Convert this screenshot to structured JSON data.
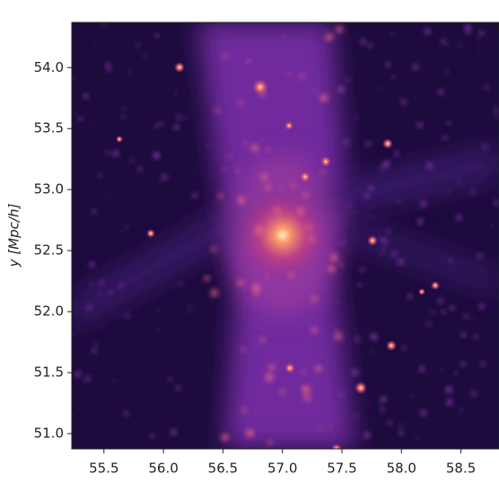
{
  "chart_data": {
    "type": "image",
    "ylabel": "y [Mpc/h]",
    "xlim": [
      55.23,
      58.82
    ],
    "ylim": [
      50.875,
      54.37
    ],
    "xticks": [
      55.5,
      {
        "value": 56,
        "label": "56.0"
      },
      56.5,
      {
        "value": 57,
        "label": "57.0"
      },
      57.5,
      {
        "value": 58,
        "label": "58.0"
      },
      58.5
    ],
    "yticks": [
      {
        "value": 51,
        "label": "51.0"
      },
      51.5,
      {
        "value": 52,
        "label": "52.0"
      },
      52.5,
      {
        "value": 53,
        "label": "53.0"
      },
      53.5,
      {
        "value": 54,
        "label": "54.0"
      }
    ]
  }
}
